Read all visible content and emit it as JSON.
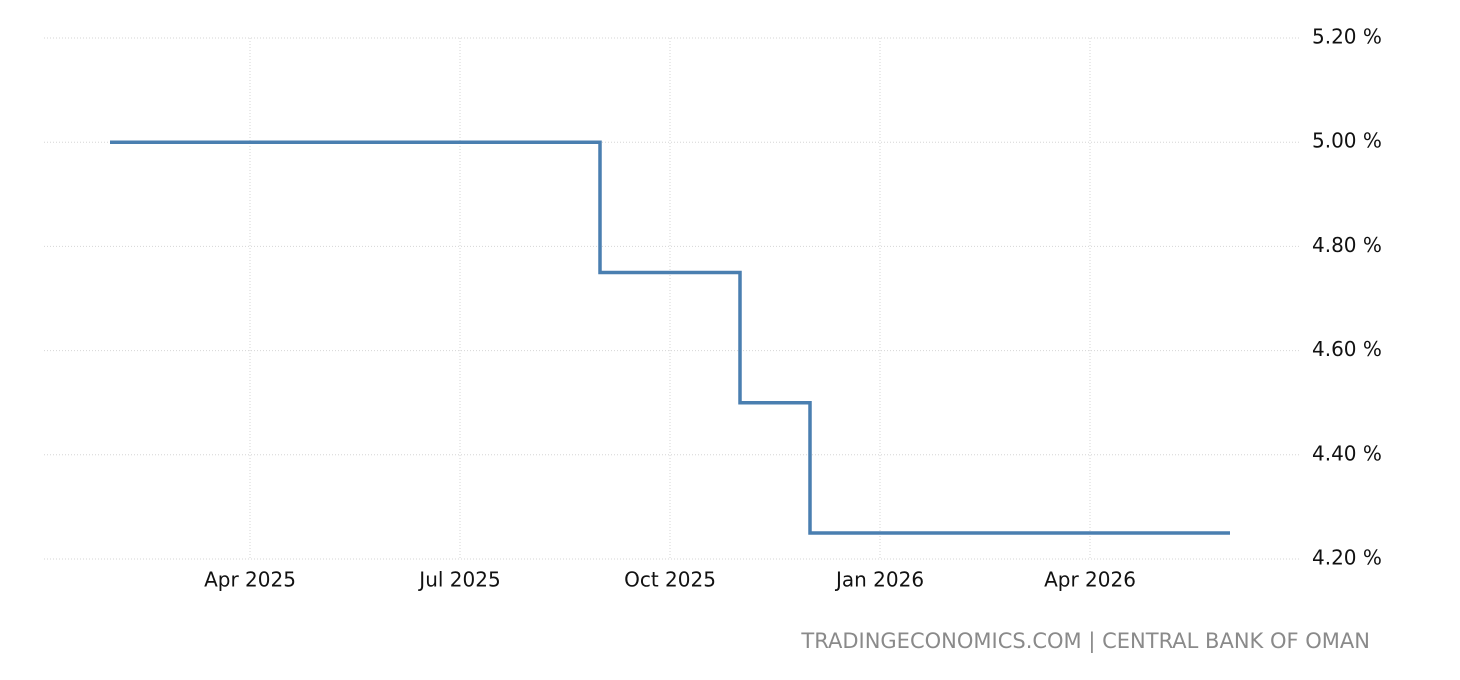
{
  "chart_data": {
    "type": "line",
    "step": "post",
    "x": [
      "2025-02",
      "2025-09",
      "2025-11",
      "2025-12",
      "2026-06"
    ],
    "series": [
      {
        "color": "#4a7fb0",
        "values": [
          5.0,
          4.75,
          4.5,
          4.25,
          4.25
        ]
      }
    ],
    "xlim": [
      "2025-01",
      "2026-07"
    ],
    "xticks": [
      {
        "value": "2025-04",
        "label": "Apr 2025"
      },
      {
        "value": "2025-07",
        "label": "Jul 2025"
      },
      {
        "value": "2025-10",
        "label": "Oct 2025"
      },
      {
        "value": "2026-01",
        "label": "Jan 2026"
      },
      {
        "value": "2026-04",
        "label": "Apr 2026"
      }
    ],
    "ylim": [
      4.2,
      5.2
    ],
    "yticks": [
      {
        "value": 4.2,
        "label": "4.20 %"
      },
      {
        "value": 4.4,
        "label": "4.40 %"
      },
      {
        "value": 4.6,
        "label": "4.60 %"
      },
      {
        "value": 4.8,
        "label": "4.80 %"
      },
      {
        "value": 5.0,
        "label": "5.00 %"
      },
      {
        "value": 5.2,
        "label": "5.20 %"
      }
    ],
    "grid": true,
    "source": "TRADINGECONOMICS.COM | CENTRAL BANK OF OMAN"
  }
}
